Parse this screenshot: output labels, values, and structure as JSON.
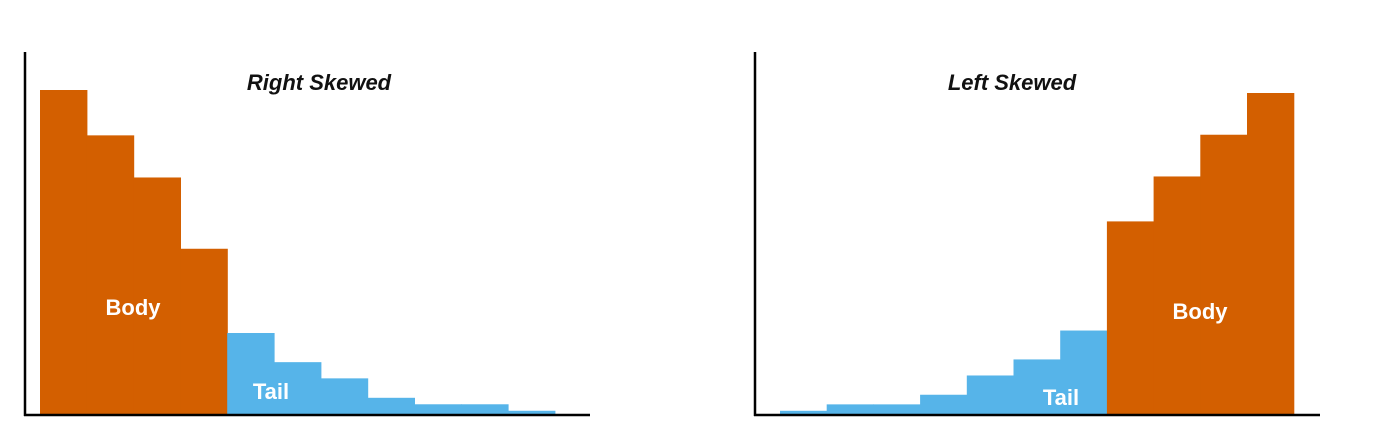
{
  "chart_data": [
    {
      "type": "bar",
      "title": "Right Skewed",
      "xlabel": "",
      "ylabel": "",
      "ylim": [
        0,
        100
      ],
      "grid": false,
      "legend": "none",
      "values": [
        100,
        86,
        73,
        51,
        25,
        16,
        11,
        5,
        3,
        3,
        1
      ],
      "bar_regions": [
        "body",
        "body",
        "body",
        "body",
        "tail",
        "tail",
        "tail",
        "tail",
        "tail",
        "tail",
        "tail"
      ],
      "colors": {
        "body": "#d35f00",
        "tail": "#56b4e9"
      },
      "annotations": [
        {
          "text": "Body",
          "region": "body"
        },
        {
          "text": "Tail",
          "region": "tail"
        }
      ]
    },
    {
      "type": "bar",
      "title": "Left Skewed",
      "xlabel": "",
      "ylabel": "",
      "ylim": [
        0,
        100
      ],
      "grid": false,
      "legend": "none",
      "values": [
        1,
        3,
        3,
        6,
        12,
        17,
        26,
        60,
        74,
        87,
        100
      ],
      "bar_regions": [
        "tail",
        "tail",
        "tail",
        "tail",
        "tail",
        "tail",
        "tail",
        "body",
        "body",
        "body",
        "body"
      ],
      "colors": {
        "body": "#d35f00",
        "tail": "#56b4e9"
      },
      "annotations": [
        {
          "text": "Tail",
          "region": "tail"
        },
        {
          "text": "Body",
          "region": "body"
        }
      ]
    }
  ]
}
